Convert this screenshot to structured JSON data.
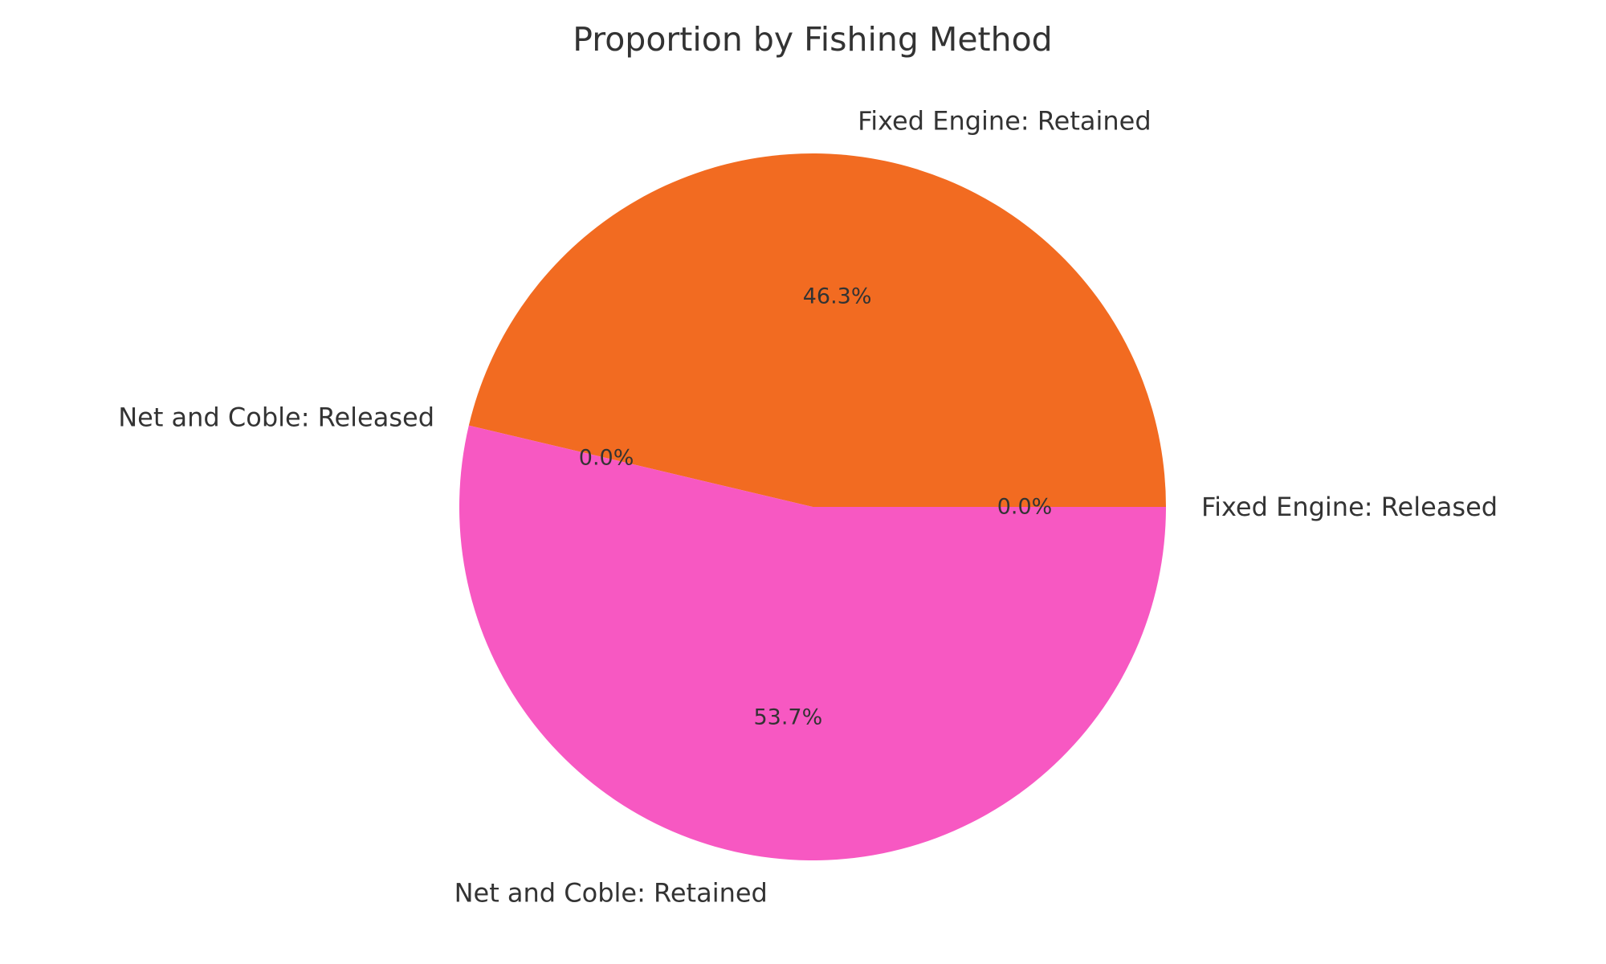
{
  "chart_data": {
    "type": "pie",
    "title": "Proportion by Fishing Method",
    "start_angle_deg": 0,
    "direction": "counterclockwise",
    "slices": [
      {
        "label": "Fixed Engine: Released",
        "value": 0.0,
        "pct_label": "0.0%",
        "color": "#4C72B0"
      },
      {
        "label": "Fixed Engine: Retained",
        "value": 46.3,
        "pct_label": "46.3%",
        "color": "#F26B21"
      },
      {
        "label": "Net and Coble: Released",
        "value": 0.0,
        "pct_label": "0.0%",
        "color": "#55A868"
      },
      {
        "label": "Net and Coble: Retained",
        "value": 53.7,
        "pct_label": "53.7%",
        "color": "#F758C2"
      }
    ]
  }
}
